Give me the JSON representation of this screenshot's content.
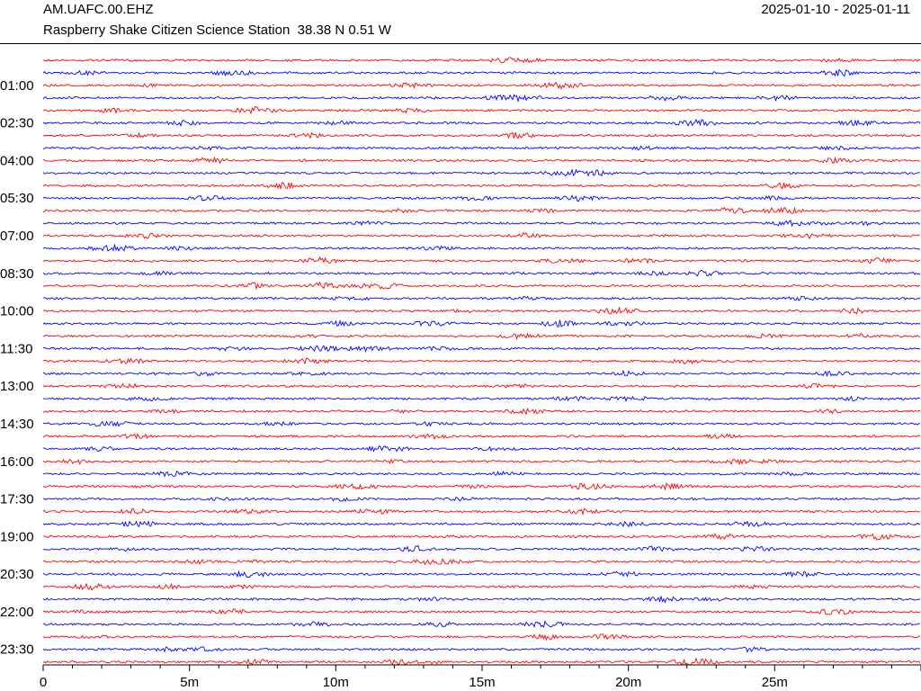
{
  "header": {
    "station_code": "AM.UAFC.00.EHZ",
    "date_range": "2025-01-10 - 2025-01-11",
    "description": "Raspberry Shake Citizen Science Station  38.38 N 0.51 W"
  },
  "chart_data": {
    "type": "line",
    "title": "",
    "xlabel": "",
    "ylabel": "",
    "x_unit": "minutes",
    "xlim": [
      0,
      30
    ],
    "x_ticks": [
      "0",
      "5m",
      "10m",
      "15m",
      "20m",
      "25m"
    ],
    "row_duration_minutes": 30,
    "row_count": 49,
    "row_labels": [
      "01:00",
      "02:30",
      "04:00",
      "05:30",
      "07:00",
      "08:30",
      "10:00",
      "11:30",
      "13:00",
      "14:30",
      "16:00",
      "17:30",
      "19:00",
      "20:30",
      "22:00",
      "23:30"
    ],
    "series_colors": [
      "#ff0000",
      "#0000ff"
    ],
    "grid": false
  }
}
